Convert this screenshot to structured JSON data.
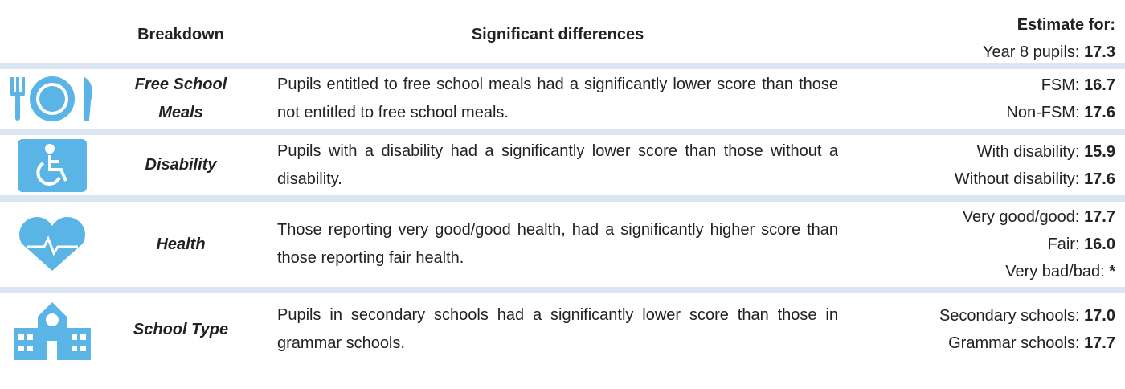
{
  "header": {
    "breakdown": "Breakdown",
    "differences": "Significant differences",
    "estimate_for": "Estimate for:",
    "overall": {
      "label": "Year 8 pupils:",
      "value": "17.3"
    }
  },
  "rows": [
    {
      "breakdown": "Free School Meals",
      "text": "Pupils entitled to free school meals had a significantly lower score than those not entitled to free school meals.",
      "estimates": [
        {
          "label": "FSM:",
          "value": "16.7"
        },
        {
          "label": "Non-FSM:",
          "value": "17.6"
        }
      ]
    },
    {
      "breakdown": "Disability",
      "text": "Pupils with a disability had a significantly lower score than those without a disability.",
      "estimates": [
        {
          "label": "With disability:",
          "value": "15.9"
        },
        {
          "label": "Without disability:",
          "value": "17.6"
        }
      ]
    },
    {
      "breakdown": "Health",
      "text": "Those reporting very good/good health, had a significantly higher score than those reporting fair health.",
      "estimates": [
        {
          "label": "Very good/good:",
          "value": "17.7"
        },
        {
          "label": "Fair:",
          "value": "16.0"
        },
        {
          "label": "Very bad/bad:",
          "value": "*"
        }
      ]
    },
    {
      "breakdown": "School Type",
      "text": "Pupils in secondary schools had a significantly lower score than those in grammar schools.",
      "estimates": [
        {
          "label": "Secondary schools:",
          "value": "17.0"
        },
        {
          "label": "Grammar schools:",
          "value": "17.7"
        }
      ]
    }
  ]
}
